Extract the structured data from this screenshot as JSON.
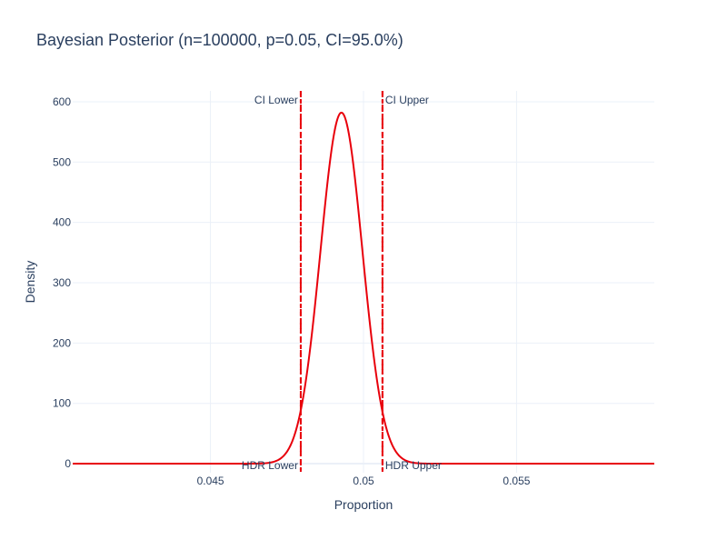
{
  "chart_data": {
    "type": "line",
    "title": "Bayesian Posterior (n=100000, p=0.05, CI=95.0%)",
    "xlabel": "Proportion",
    "ylabel": "Density",
    "xlim": [
      0.0405,
      0.0595
    ],
    "ylim": [
      -15,
      618
    ],
    "x_ticks": [
      0.045,
      0.05,
      0.055
    ],
    "x_tick_labels": [
      "0.045",
      "0.05",
      "0.055"
    ],
    "y_ticks": [
      0,
      100,
      200,
      300,
      400,
      500,
      600
    ],
    "y_tick_labels": [
      "0",
      "100",
      "200",
      "300",
      "400",
      "500",
      "600"
    ],
    "grid": true,
    "legend": "none",
    "colors": {
      "line": "#e8000b",
      "ci": "#e8000b",
      "hdr": "#e8000b",
      "text": "#2a3f5f",
      "grid": "#ebf0f8"
    },
    "series": [
      {
        "line_style": "solid",
        "distribution": {
          "mean": 0.04928,
          "sd": 0.000685
        },
        "x": [
          0.0405,
          0.046,
          0.047,
          0.0475,
          0.0478,
          0.048,
          0.0482,
          0.0484,
          0.0486,
          0.0488,
          0.049,
          0.0492,
          0.04928,
          0.0494,
          0.0496,
          0.0498,
          0.05,
          0.0502,
          0.0504,
          0.0506,
          0.0508,
          0.051,
          0.0515,
          0.0525,
          0.0595
        ],
        "y": [
          0,
          0,
          2,
          18,
          45,
          85,
          153,
          250,
          363,
          475,
          555,
          581,
          582,
          575,
          502,
          392,
          273,
          169,
          92,
          44,
          18,
          7,
          1,
          0,
          0
        ]
      }
    ],
    "vertical_lines": [
      {
        "x": 0.04795,
        "style": "dashdot",
        "label": "CI Lower",
        "label_position": "top-left"
      },
      {
        "x": 0.05062,
        "style": "dashdot",
        "label": "CI Upper",
        "label_position": "top-right"
      },
      {
        "x": 0.04795,
        "style": "dash",
        "label": "HDR Lower",
        "label_position": "bottom-left"
      },
      {
        "x": 0.05062,
        "style": "dash",
        "label": "HDR Upper",
        "label_position": "bottom-right"
      }
    ]
  }
}
